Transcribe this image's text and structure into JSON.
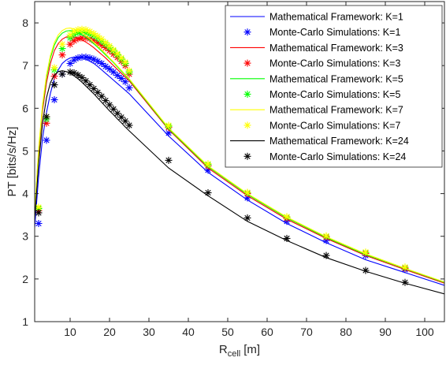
{
  "chart_data": {
    "type": "line",
    "xlabel": "R",
    "xlabel_sub": "cell",
    "xlabel_unit": "[m]",
    "ylabel": "PT [bits/s/Hz]",
    "xlim": [
      1,
      105
    ],
    "ylim": [
      1,
      8.5
    ],
    "xticks": [
      10,
      20,
      30,
      40,
      50,
      60,
      70,
      80,
      90,
      100
    ],
    "yticks": [
      1,
      2,
      3,
      4,
      5,
      6,
      7,
      8
    ],
    "grid": false,
    "legend_position": "top-right",
    "x": [
      1,
      2,
      3,
      4,
      5,
      6,
      7,
      8,
      9,
      10,
      11,
      12,
      13,
      14,
      15,
      16,
      17,
      18,
      19,
      20,
      21,
      22,
      23,
      24,
      25,
      35,
      45,
      55,
      65,
      75,
      85,
      95,
      105
    ],
    "series": [
      {
        "name": "Mathematical Framework: K=1",
        "style": "line",
        "color": "#0000ff",
        "values": [
          3.2,
          4.4,
          5.3,
          5.9,
          6.35,
          6.7,
          6.9,
          7.05,
          7.13,
          7.18,
          7.2,
          7.2,
          7.18,
          7.15,
          7.1,
          7.05,
          6.98,
          6.9,
          6.82,
          6.74,
          6.66,
          6.58,
          6.5,
          6.42,
          6.34,
          5.35,
          4.5,
          3.85,
          3.3,
          2.85,
          2.45,
          2.15,
          1.85
        ]
      },
      {
        "name": "Monte-Carlo Simulations: K=1",
        "style": "marker",
        "color": "#0000ff",
        "x": [
          2,
          4,
          6,
          8,
          10,
          11,
          12,
          13,
          14,
          15,
          16,
          17,
          18,
          19,
          20,
          21,
          22,
          23,
          24,
          25,
          35,
          45,
          55,
          65,
          75,
          85,
          95
        ],
        "values": [
          3.3,
          5.25,
          6.2,
          6.8,
          7.05,
          7.13,
          7.18,
          7.2,
          7.2,
          7.18,
          7.15,
          7.1,
          7.05,
          6.98,
          6.92,
          6.85,
          6.77,
          6.7,
          6.62,
          6.48,
          5.42,
          4.55,
          3.9,
          3.35,
          2.9,
          2.55,
          2.22
        ]
      },
      {
        "name": "Mathematical Framework: K=3",
        "style": "line",
        "color": "#ff0000",
        "values": [
          3.5,
          4.9,
          5.95,
          6.6,
          7.05,
          7.35,
          7.52,
          7.62,
          7.67,
          7.68,
          7.67,
          7.64,
          7.6,
          7.55,
          7.49,
          7.42,
          7.34,
          7.26,
          7.18,
          7.09,
          7.0,
          6.91,
          6.82,
          6.73,
          6.64,
          5.5,
          4.6,
          3.95,
          3.4,
          2.95,
          2.55,
          2.22,
          1.9
        ]
      },
      {
        "name": "Monte-Carlo Simulations: K=3",
        "style": "marker",
        "color": "#ff0000",
        "x": [
          2,
          4,
          6,
          8,
          10,
          11,
          12,
          13,
          14,
          15,
          16,
          17,
          18,
          19,
          20,
          21,
          22,
          23,
          24,
          25,
          35,
          45,
          55,
          65,
          75,
          85,
          95
        ],
        "values": [
          3.6,
          5.65,
          6.75,
          7.25,
          7.5,
          7.58,
          7.63,
          7.65,
          7.65,
          7.63,
          7.59,
          7.54,
          7.48,
          7.42,
          7.35,
          7.27,
          7.19,
          7.1,
          7.0,
          6.8,
          5.55,
          4.65,
          4.0,
          3.42,
          2.98,
          2.6,
          2.25
        ]
      },
      {
        "name": "Mathematical Framework: K=5",
        "style": "line",
        "color": "#00ff00",
        "values": [
          3.55,
          5.0,
          6.05,
          6.72,
          7.18,
          7.48,
          7.66,
          7.76,
          7.81,
          7.82,
          7.81,
          7.77,
          7.72,
          7.66,
          7.59,
          7.51,
          7.43,
          7.34,
          7.25,
          7.16,
          7.07,
          6.97,
          6.87,
          6.77,
          6.67,
          5.52,
          4.63,
          3.98,
          3.43,
          2.97,
          2.57,
          2.24,
          1.92
        ]
      },
      {
        "name": "Monte-Carlo Simulations: K=5",
        "style": "marker",
        "color": "#00ff00",
        "x": [
          2,
          4,
          6,
          8,
          10,
          11,
          12,
          13,
          14,
          15,
          16,
          17,
          18,
          19,
          20,
          21,
          22,
          23,
          24,
          25,
          35,
          45,
          55,
          65,
          75,
          85,
          95
        ],
        "values": [
          3.65,
          5.75,
          6.9,
          7.4,
          7.65,
          7.73,
          7.77,
          7.78,
          7.77,
          7.74,
          7.7,
          7.64,
          7.57,
          7.5,
          7.42,
          7.34,
          7.25,
          7.15,
          7.05,
          6.85,
          5.58,
          4.68,
          4.02,
          3.45,
          3.0,
          2.62,
          2.27
        ]
      },
      {
        "name": "Mathematical Framework: K=7",
        "style": "line",
        "color": "#ffff00",
        "values": [
          3.58,
          5.05,
          6.1,
          6.78,
          7.24,
          7.54,
          7.72,
          7.82,
          7.87,
          7.88,
          7.86,
          7.82,
          7.77,
          7.7,
          7.63,
          7.55,
          7.46,
          7.37,
          7.28,
          7.18,
          7.09,
          6.99,
          6.89,
          6.79,
          6.69,
          5.54,
          4.65,
          4.0,
          3.45,
          2.99,
          2.59,
          2.25,
          1.93
        ]
      },
      {
        "name": "Monte-Carlo Simulations: K=7",
        "style": "marker",
        "color": "#ffff00",
        "x": [
          2,
          4,
          6,
          8,
          10,
          11,
          12,
          13,
          14,
          15,
          16,
          17,
          18,
          19,
          20,
          21,
          22,
          23,
          24,
          25,
          35,
          45,
          55,
          65,
          75,
          85,
          95
        ],
        "values": [
          3.68,
          5.8,
          6.95,
          7.5,
          7.72,
          7.8,
          7.84,
          7.85,
          7.84,
          7.8,
          7.75,
          7.69,
          7.62,
          7.54,
          7.46,
          7.37,
          7.28,
          7.18,
          7.08,
          6.88,
          5.6,
          4.7,
          4.03,
          3.46,
          3.01,
          2.63,
          2.28
        ]
      },
      {
        "name": "Mathematical Framework: K=24",
        "style": "line",
        "color": "#000000",
        "values": [
          3.4,
          4.7,
          5.65,
          6.25,
          6.6,
          6.78,
          6.86,
          6.88,
          6.86,
          6.82,
          6.76,
          6.69,
          6.61,
          6.52,
          6.43,
          6.34,
          6.24,
          6.14,
          6.04,
          5.94,
          5.85,
          5.75,
          5.66,
          5.56,
          5.47,
          4.6,
          3.95,
          3.35,
          2.9,
          2.5,
          2.18,
          1.9,
          1.65
        ]
      },
      {
        "name": "Monte-Carlo Simulations: K=24",
        "style": "marker",
        "color": "#000000",
        "x": [
          2,
          4,
          6,
          8,
          10,
          11,
          12,
          13,
          14,
          15,
          16,
          17,
          18,
          19,
          20,
          21,
          22,
          23,
          24,
          25,
          35,
          45,
          55,
          65,
          75,
          85,
          95
        ],
        "values": [
          3.55,
          5.8,
          6.55,
          6.8,
          6.85,
          6.83,
          6.78,
          6.72,
          6.64,
          6.55,
          6.46,
          6.37,
          6.28,
          6.18,
          6.08,
          5.98,
          5.88,
          5.79,
          5.7,
          5.6,
          4.78,
          4.02,
          3.43,
          2.95,
          2.55,
          2.2,
          1.92
        ]
      }
    ]
  }
}
